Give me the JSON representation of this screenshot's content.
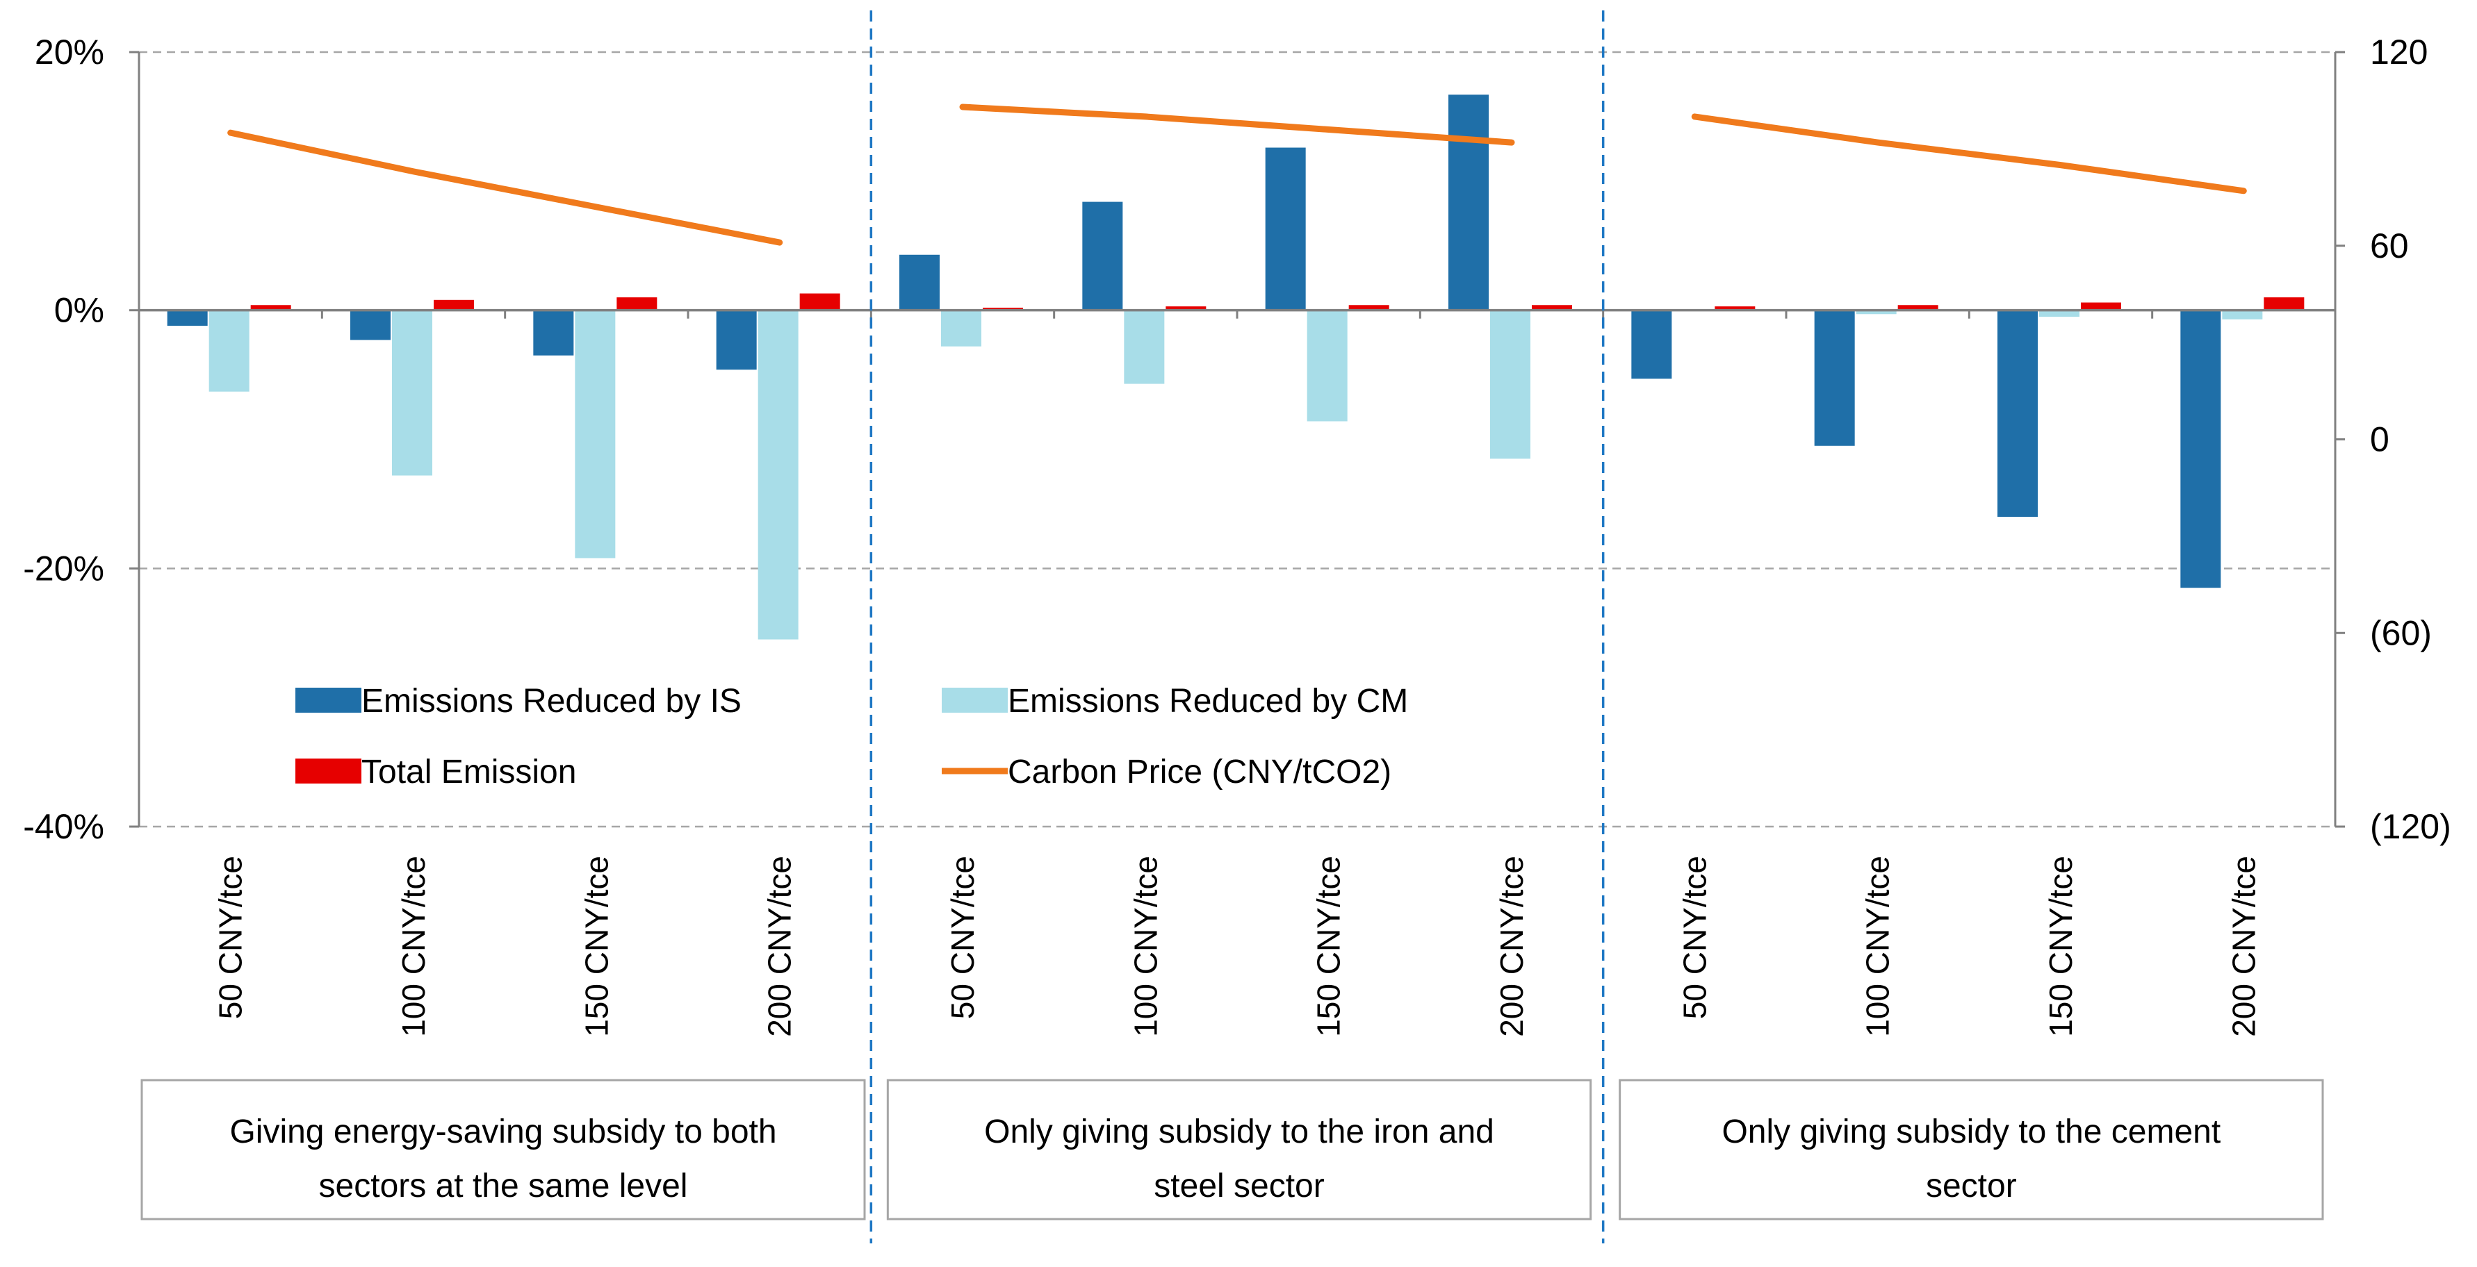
{
  "chart_data": {
    "type": "bar",
    "title": "",
    "xlabel": "",
    "ylabel": "",
    "ylim": [
      -40,
      20
    ],
    "y_tick_labels": [
      "20%",
      "0%",
      "-20%",
      "-40%"
    ],
    "y_tick_values": [
      20,
      0,
      -20,
      -40
    ],
    "y2lim": [
      -120,
      120
    ],
    "y2_tick_labels": [
      "120",
      "60",
      "0",
      "(60)",
      "(120)"
    ],
    "y2_tick_values": [
      120,
      60,
      0,
      -60,
      -120
    ],
    "grid": true,
    "categories": [
      "50 CNY/tce",
      "100 CNY/tce",
      "150 CNY/tce",
      "200 CNY/tce",
      "50 CNY/tce",
      "100 CNY/tce",
      "150 CNY/tce",
      "200 CNY/tce",
      "50 CNY/tce",
      "100 CNY/tce",
      "150 CNY/tce",
      "200 CNY/tce"
    ],
    "groups": [
      {
        "label_lines": [
          "Giving energy-saving subsidy to both",
          "sectors at the same level"
        ],
        "count": 4
      },
      {
        "label_lines": [
          "Only giving subsidy to the iron and",
          "steel sector"
        ],
        "count": 4
      },
      {
        "label_lines": [
          "Only giving subsidy to the cement",
          "sector"
        ],
        "count": 4
      }
    ],
    "series": [
      {
        "name": "Emissions Reduced by IS",
        "kind": "bar",
        "color": "#1f6fa8",
        "values": [
          -1.2,
          -2.3,
          -3.5,
          -4.6,
          4.3,
          8.4,
          12.6,
          16.7,
          -5.3,
          -10.5,
          -16.0,
          -21.5
        ]
      },
      {
        "name": "Emissions Reduced by CM",
        "kind": "bar",
        "color": "#a8dde8",
        "values": [
          -6.3,
          -12.8,
          -19.2,
          -25.5,
          -2.8,
          -5.7,
          -8.6,
          -11.5,
          0,
          -0.3,
          -0.5,
          -0.7
        ]
      },
      {
        "name": "Total Emission",
        "kind": "bar",
        "color": "#e60000",
        "values": [
          0.4,
          0.8,
          1.0,
          1.3,
          0.2,
          0.3,
          0.4,
          0.4,
          0.3,
          0.4,
          0.6,
          1.0
        ]
      },
      {
        "name": "Carbon Price (CNY/tCO2)",
        "kind": "line",
        "axis": "right",
        "color": "#f07a1c",
        "segments": [
          {
            "start_index": 0,
            "values": [
              95,
              83,
              72,
              61
            ]
          },
          {
            "start_index": 4,
            "values": [
              103,
              100,
              96,
              92
            ]
          },
          {
            "start_index": 8,
            "values": [
              100,
              92,
              85,
              77
            ]
          }
        ]
      }
    ],
    "legend_position": "lower-center inside plot"
  }
}
